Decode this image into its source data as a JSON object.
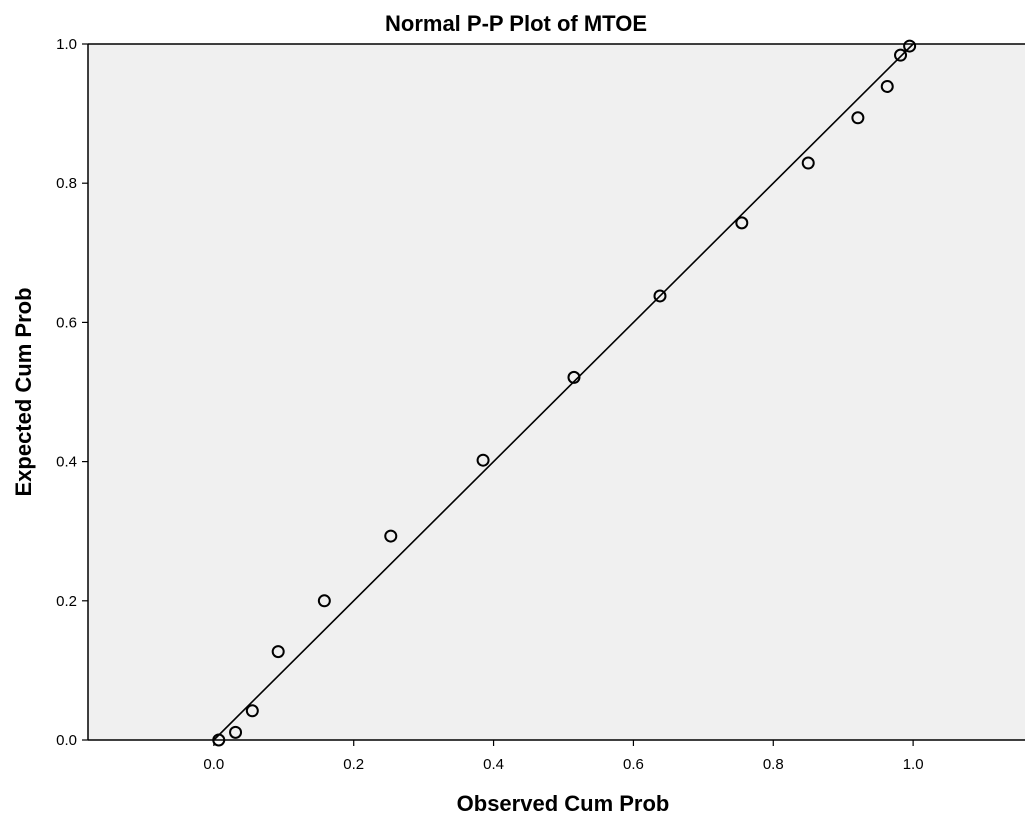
{
  "chart_data": {
    "type": "scatter",
    "title": "Normal P-P Plot of MTOE",
    "xlabel": "Observed Cum Prob",
    "ylabel": "Expected Cum Prob",
    "xlim": [
      -0.18,
      1.16
    ],
    "ylim": [
      0.0,
      1.0
    ],
    "x_ticks": [
      0.0,
      0.2,
      0.4,
      0.6,
      0.8,
      1.0
    ],
    "y_ticks": [
      0.0,
      0.2,
      0.4,
      0.6,
      0.8,
      1.0
    ],
    "x_tick_labels": [
      "0.0",
      "0.2",
      "0.4",
      "0.6",
      "0.8",
      "1.0"
    ],
    "y_tick_labels": [
      "0.0",
      "0.2",
      "0.4",
      "0.6",
      "0.8",
      "1.0"
    ],
    "reference_line": {
      "from": [
        0,
        0
      ],
      "to": [
        1,
        1
      ]
    },
    "grid": false,
    "colors": {
      "plot_background": "#f0f0f0",
      "marker": "#000000",
      "line": "#000000"
    },
    "points": [
      {
        "x": 0.007,
        "y": 0.0
      },
      {
        "x": 0.031,
        "y": 0.011
      },
      {
        "x": 0.055,
        "y": 0.042
      },
      {
        "x": 0.092,
        "y": 0.127
      },
      {
        "x": 0.158,
        "y": 0.2
      },
      {
        "x": 0.253,
        "y": 0.293
      },
      {
        "x": 0.385,
        "y": 0.402
      },
      {
        "x": 0.515,
        "y": 0.521
      },
      {
        "x": 0.638,
        "y": 0.638
      },
      {
        "x": 0.755,
        "y": 0.743
      },
      {
        "x": 0.85,
        "y": 0.829
      },
      {
        "x": 0.921,
        "y": 0.894
      },
      {
        "x": 0.963,
        "y": 0.939
      },
      {
        "x": 0.982,
        "y": 0.984
      },
      {
        "x": 0.995,
        "y": 0.997
      }
    ]
  }
}
